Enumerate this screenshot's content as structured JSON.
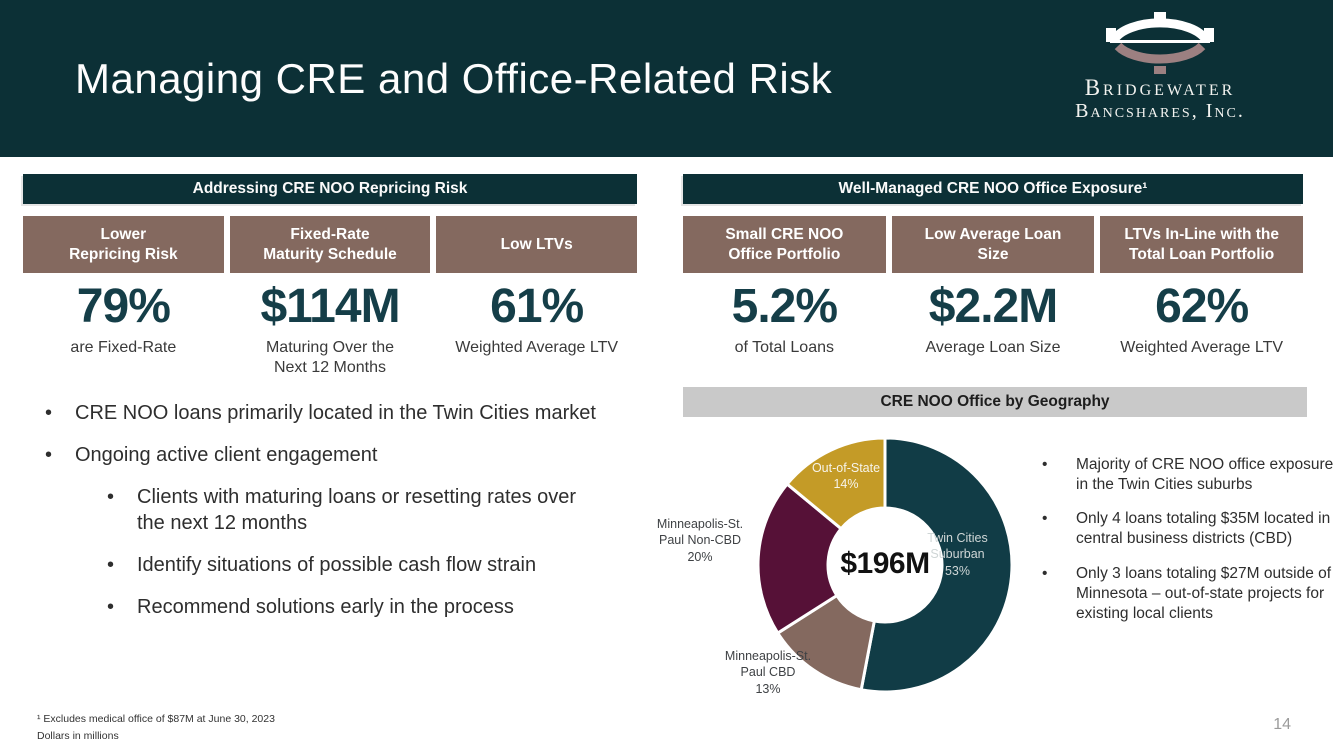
{
  "slide": {
    "title": "Managing CRE and Office-Related Risk",
    "page_number": "14"
  },
  "logo": {
    "line1": "Bridgewater",
    "line2": "Bancshares, Inc."
  },
  "colors": {
    "brand_teal": "#0C3036",
    "chart_teal": "#113C46",
    "mauve": "#84695F",
    "wine": "#561137",
    "gold": "#C49B27",
    "gray_bar": "#C9C9C9",
    "stat_number": "#153E48"
  },
  "left_panel": {
    "header": "Addressing CRE NOO Repricing Risk",
    "items": [
      {
        "box": "Lower\nRepricing Risk",
        "stat": "79%",
        "caption": "are Fixed-Rate"
      },
      {
        "box": "Fixed-Rate\nMaturity Schedule",
        "stat": "$114M",
        "caption": "Maturing Over the\nNext 12 Months"
      },
      {
        "box": "Low LTVs",
        "stat": "61%",
        "caption": "Weighted Average LTV"
      }
    ]
  },
  "right_panel": {
    "header": "Well-Managed CRE NOO Office Exposure¹",
    "items": [
      {
        "box": "Small CRE NOO\nOffice Portfolio",
        "stat": "5.2%",
        "caption": "of Total Loans"
      },
      {
        "box": "Low Average Loan\nSize",
        "stat": "$2.2M",
        "caption": "Average Loan Size"
      },
      {
        "box": "LTVs In-Line with the\nTotal Loan Portfolio",
        "stat": "62%",
        "caption": "Weighted Average LTV"
      }
    ]
  },
  "bullets_left": {
    "items": [
      {
        "text": "CRE NOO loans primarily located in the Twin Cities market"
      },
      {
        "text": "Ongoing active client engagement"
      }
    ],
    "sub_items": [
      "Clients with maturing loans or resetting rates over the next 12 months",
      "Identify situations of possible cash flow strain",
      "Recommend solutions early in the process"
    ]
  },
  "geo": {
    "header": "CRE NOO Office by Geography"
  },
  "chart_data": {
    "type": "pie",
    "subtype": "donut",
    "title": "CRE NOO Office by Geography",
    "center_label": "$196M",
    "units": "percent of $196M CRE NOO office portfolio",
    "start_angle_deg": 0,
    "direction": "clockwise",
    "slices": [
      {
        "label": "Twin Cities Suburban",
        "pct": 53,
        "color": "#113C46",
        "text_color": "#CFD6D6",
        "label_inside": true
      },
      {
        "label": "Minneapolis-St. Paul CBD",
        "pct": 13,
        "color": "#84695F",
        "text_color": "#3F4245",
        "label_inside": false
      },
      {
        "label": "Minneapolis-St. Paul Non-CBD",
        "pct": 20,
        "color": "#561137",
        "text_color": "#3F4245",
        "label_inside": false
      },
      {
        "label": "Out-of-State",
        "pct": 14,
        "color": "#C49B27",
        "text_color": "#F7F4EA",
        "label_inside": true
      }
    ]
  },
  "bullets_right": [
    "Majority of CRE NOO office exposure in the Twin Cities suburbs",
    "Only 4 loans totaling $35M located in central business districts (CBD)",
    "Only 3 loans totaling $27M outside of Minnesota – out-of-state projects for existing local clients"
  ],
  "footnotes": [
    "¹ Excludes medical office of $87M at June 30, 2023",
    "Dollars in millions"
  ]
}
